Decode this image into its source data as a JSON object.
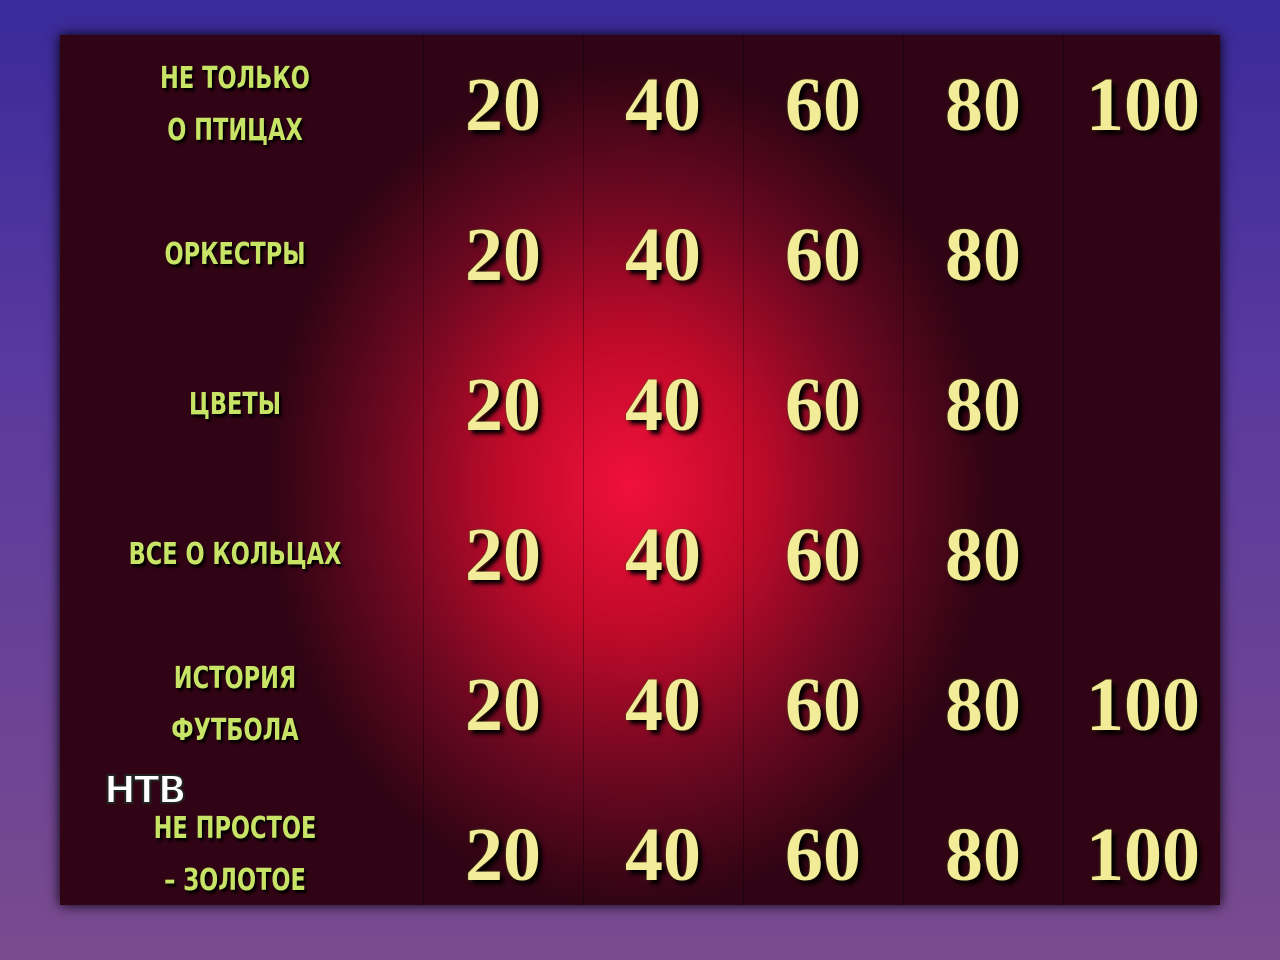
{
  "board": {
    "rows": [
      {
        "category": [
          "НЕ ТОЛЬКО",
          "О ПТИЦАХ"
        ],
        "values": [
          20,
          40,
          60,
          80,
          100
        ]
      },
      {
        "category": [
          "ОРКЕСТРЫ"
        ],
        "values": [
          20,
          40,
          60,
          80
        ]
      },
      {
        "category": [
          "ЦВЕТЫ"
        ],
        "values": [
          20,
          40,
          60,
          80
        ]
      },
      {
        "category": [
          "ВСЕ О КОЛЬЦАХ"
        ],
        "values": [
          20,
          40,
          60,
          80
        ]
      },
      {
        "category": [
          "ИСТОРИЯ",
          "ФУТБОЛА"
        ],
        "values": [
          20,
          40,
          60,
          80,
          100
        ]
      },
      {
        "category": [
          "НЕ ПРОСТОЕ",
          "– ЗОЛОТОЕ"
        ],
        "values": [
          20,
          40,
          60,
          80,
          100
        ]
      }
    ]
  },
  "logo": "НТВ"
}
